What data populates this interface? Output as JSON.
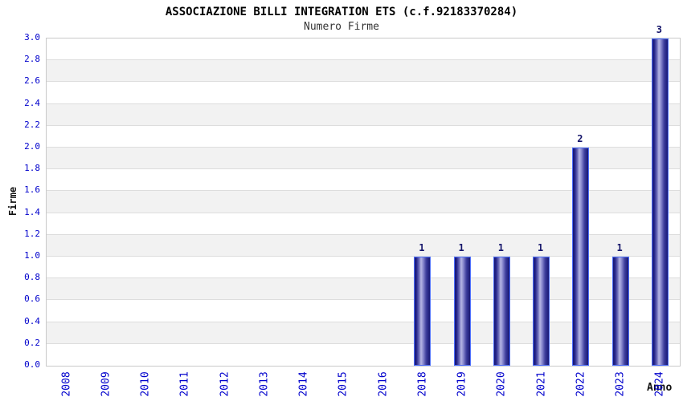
{
  "chart_data": {
    "type": "bar",
    "title": "ASSOCIAZIONE BILLI INTEGRATION ETS (c.f.92183370284)",
    "subtitle": "Numero Firme",
    "xlabel": "Anno",
    "ylabel": "Firme",
    "categories": [
      "2008",
      "2009",
      "2010",
      "2011",
      "2012",
      "2013",
      "2014",
      "2015",
      "2016",
      "2018",
      "2019",
      "2020",
      "2021",
      "2022",
      "2023",
      "2024"
    ],
    "values": [
      0,
      0,
      0,
      0,
      0,
      0,
      0,
      0,
      0,
      1,
      1,
      1,
      1,
      2,
      1,
      3
    ],
    "bar_value_labels": [
      "",
      "",
      "",
      "",
      "",
      "",
      "",
      "",
      "",
      "1",
      "1",
      "1",
      "1",
      "2",
      "1",
      "3"
    ],
    "ylim": [
      0,
      3
    ],
    "yticks": [
      "0.0",
      "0.2",
      "0.4",
      "0.6",
      "0.8",
      "1.0",
      "1.2",
      "1.4",
      "1.6",
      "1.8",
      "2.0",
      "2.2",
      "2.4",
      "2.6",
      "2.8",
      "3.0"
    ],
    "grid": true,
    "legend": "none",
    "colors": {
      "tick_label": "#0000cc",
      "value_label": "#14146a",
      "band_light": "#ffffff",
      "band_dark": "#f2f2f2",
      "gridline": "#dddddd",
      "plot_border": "#c9c9c9",
      "bar_edge": "#4d6ffd",
      "bar_dark": "#181874",
      "bar_light": "#b6b6e4"
    }
  }
}
